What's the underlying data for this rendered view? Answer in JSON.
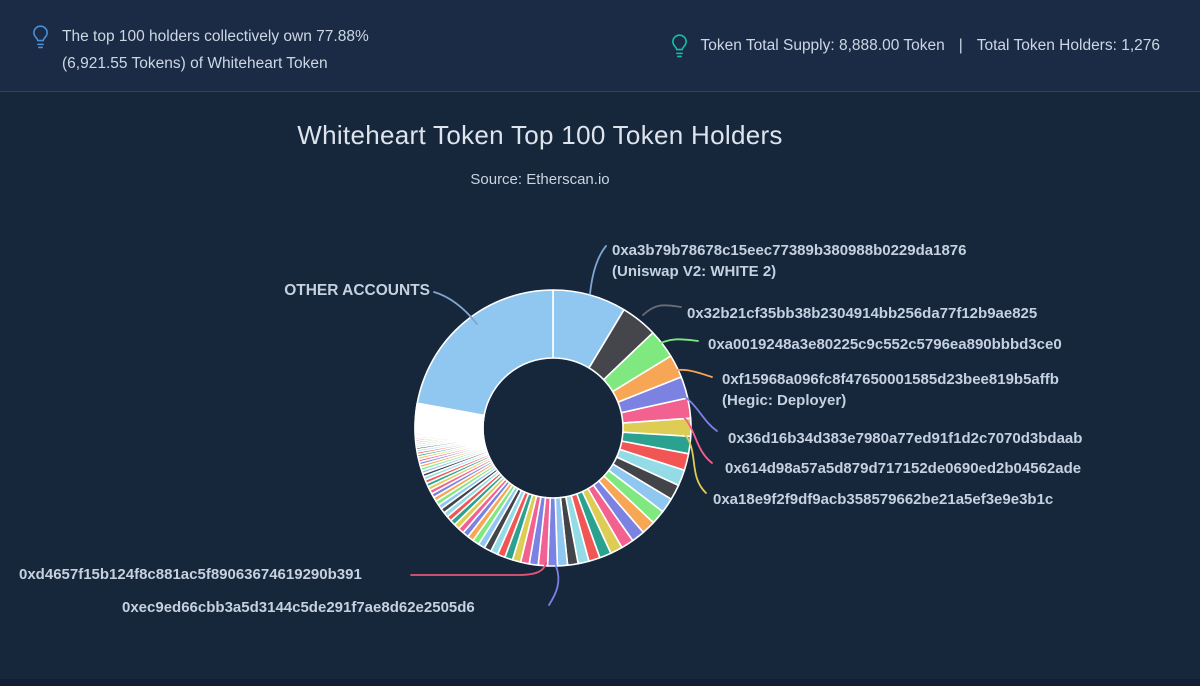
{
  "banner": {
    "left": {
      "icon": "lightbulb-icon",
      "icon_color": "#4a90d8",
      "text": "The top 100 holders collectively own 77.88% (6,921.55 Tokens) of Whiteheart Token"
    },
    "right": {
      "icon": "lightbulb-icon",
      "icon_color": "#16c0a2",
      "supply": "Token Total Supply: 8,888.00 Token",
      "separator": "|",
      "holders": "Total Token Holders: 1,276"
    }
  },
  "chart_data": {
    "type": "pie",
    "variant": "donut",
    "title": "Whiteheart Token Top 100 Token Holders",
    "subtitle": "Source: Etherscan.io",
    "legend": "none",
    "top_100_pct": 77.88,
    "top_100_tokens": "6,921.55",
    "token_total_supply": "8,888.00 Token",
    "total_token_holders": "1,276",
    "slices": [
      {
        "label": "0xa3b79b78678c15eec77389b380988b0229da1876",
        "tag": "(Uniswap V2: WHITE 2)",
        "pct": 8.6,
        "color": "#8fc7f0"
      },
      {
        "label": "0x32b21cf35bb38b2304914bb256da77f12b9ae825",
        "pct": 4.28,
        "color": "#45464c"
      },
      {
        "label": "0xa0019248a3e80225c9c552c5796ea890bbbd3ce0",
        "pct": 3.4,
        "color": "#7fe97f"
      },
      {
        "label": "0xf15968a096fc8f47650001585d23bee819b5affb",
        "tag": "(Hegic: Deployer)",
        "pct": 2.7,
        "color": "#f7a656"
      },
      {
        "label": "0x36d16b34d383e7980a77ed91f1d2c7070d3bdaab",
        "pct": 2.53,
        "color": "#7b82e2"
      },
      {
        "label": "0x614d98a57a5d879d717152de0690ed2b04562ade",
        "pct": 2.36,
        "color": "#f2618f"
      },
      {
        "label": "0xa18e9f2f9df9acb358579662be21a5ef3e9e3b1c",
        "pct": 2.1,
        "color": "#decd54"
      },
      {
        "label": "0xd4657f15b124f8c881ac5f89063674619290b391",
        "pct": 0.63,
        "color": "#f2618f"
      },
      {
        "label": "0xec9ed66cbb3a5d3144c5de291f7ae8d62e2505d6",
        "pct": 0.63,
        "color": "#7b82e2"
      }
    ],
    "other": {
      "label": "OTHER ACCOUNTS",
      "pct": 22.12,
      "color": "#8fc7f0"
    },
    "tail": {
      "count": 93,
      "start_pct": 2.0,
      "decay_ratio": 0.962,
      "palette": [
        "#2aa28f",
        "#f25654",
        "#92dbe7",
        "#43444a",
        "#8fc7f0",
        "#7fe97f",
        "#f7a656",
        "#7b82e2",
        "#f2618f",
        "#decd54"
      ]
    }
  }
}
